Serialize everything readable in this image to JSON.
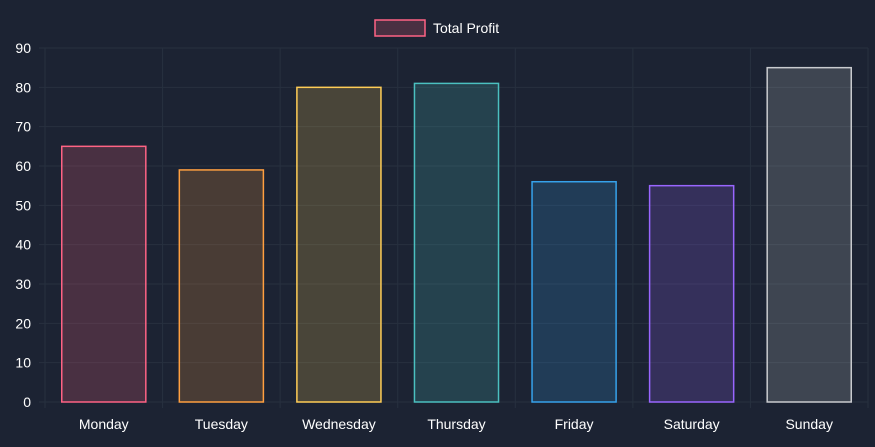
{
  "chart_data": {
    "type": "bar",
    "categories": [
      "Monday",
      "Tuesday",
      "Wednesday",
      "Thursday",
      "Friday",
      "Saturday",
      "Sunday"
    ],
    "series": [
      {
        "name": "Total Profit",
        "values": [
          65,
          59,
          80,
          81,
          56,
          55,
          85
        ]
      }
    ],
    "title": "",
    "xlabel": "",
    "ylabel": "",
    "ylim": [
      0,
      90
    ],
    "yticks": [
      0,
      10,
      20,
      30,
      40,
      50,
      60,
      70,
      80,
      90
    ],
    "grid": true,
    "legend": "top-center",
    "bar_colors": [
      {
        "border": "#ff6384",
        "fill": "rgba(255,99,132,0.2)"
      },
      {
        "border": "#ff9f40",
        "fill": "rgba(255,159,64,0.2)"
      },
      {
        "border": "#ffcd56",
        "fill": "rgba(255,205,86,0.2)"
      },
      {
        "border": "#4bc0c0",
        "fill": "rgba(75,192,192,0.2)"
      },
      {
        "border": "#36a2eb",
        "fill": "rgba(54,162,235,0.2)"
      },
      {
        "border": "#9966ff",
        "fill": "rgba(153,102,255,0.2)"
      },
      {
        "border": "#c9cbcf",
        "fill": "rgba(201,203,207,0.2)"
      }
    ],
    "legend_color": {
      "border": "#ff6384",
      "fill": "rgba(255,99,132,0.2)"
    },
    "background": "#1c2333",
    "grid_color": "#27303f"
  }
}
